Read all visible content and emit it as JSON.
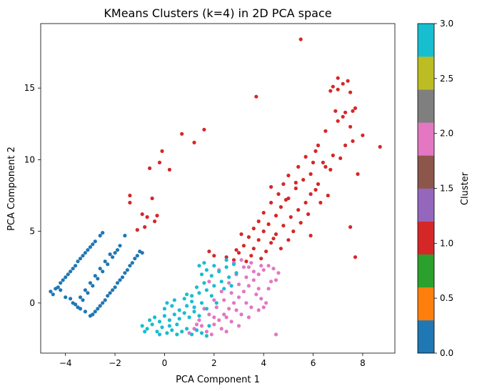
{
  "chart_data": {
    "type": "scatter",
    "title": "KMeans Clusters (k=4) in 2D PCA space",
    "xlabel": "PCA Component 1",
    "ylabel": "PCA Component 2",
    "xlim": [
      -5.0,
      9.3
    ],
    "ylim": [
      -3.5,
      19.5
    ],
    "xticks": [
      "−4",
      "−2",
      "0",
      "2",
      "4",
      "6",
      "8"
    ],
    "xtick_values": [
      -4,
      -2,
      0,
      2,
      4,
      6,
      8
    ],
    "yticks": [
      "0",
      "5",
      "10",
      "15"
    ],
    "ytick_values": [
      0,
      5,
      10,
      15
    ],
    "grid": false,
    "legend": "none",
    "colorbar": {
      "label": "Cluster",
      "range": [
        0.0,
        3.0
      ],
      "ticks": [
        "0.0",
        "0.5",
        "1.0",
        "1.5",
        "2.0",
        "2.5",
        "3.0"
      ],
      "tick_values": [
        0.0,
        0.5,
        1.0,
        1.5,
        2.0,
        2.5,
        3.0
      ],
      "colors": [
        "#1f77b4",
        "#ff7f0e",
        "#2ca02c",
        "#d62728",
        "#9467bd",
        "#8c564b",
        "#e377c2",
        "#7f7f7f",
        "#bcbd22",
        "#17becf"
      ]
    },
    "series": [
      {
        "cluster": 0,
        "color": "#1f77b4",
        "points": [
          [
            -4.6,
            0.8
          ],
          [
            -4.4,
            1.0
          ],
          [
            -4.2,
            1.4
          ],
          [
            -4.0,
            1.8
          ],
          [
            -3.8,
            2.2
          ],
          [
            -3.6,
            2.6
          ],
          [
            -3.4,
            3.1
          ],
          [
            -3.2,
            3.5
          ],
          [
            -3.0,
            3.9
          ],
          [
            -2.8,
            4.3
          ],
          [
            -2.6,
            4.7
          ],
          [
            -2.5,
            4.9
          ],
          [
            -4.3,
            1.1
          ],
          [
            -4.1,
            1.6
          ],
          [
            -3.9,
            2.0
          ],
          [
            -3.7,
            2.4
          ],
          [
            -3.5,
            2.9
          ],
          [
            -3.3,
            3.3
          ],
          [
            -3.1,
            3.7
          ],
          [
            -2.9,
            4.1
          ],
          [
            -4.5,
            0.6
          ],
          [
            -4.0,
            0.4
          ],
          [
            -3.7,
            0.0
          ],
          [
            -3.5,
            -0.3
          ],
          [
            -3.3,
            0.2
          ],
          [
            -3.1,
            0.7
          ],
          [
            -2.9,
            1.2
          ],
          [
            -2.7,
            1.7
          ],
          [
            -2.5,
            2.2
          ],
          [
            -2.3,
            2.7
          ],
          [
            -2.1,
            3.2
          ],
          [
            -1.9,
            3.7
          ],
          [
            -1.8,
            4.0
          ],
          [
            -3.6,
            -0.1
          ],
          [
            -3.4,
            0.4
          ],
          [
            -3.2,
            0.9
          ],
          [
            -3.0,
            1.4
          ],
          [
            -2.8,
            1.9
          ],
          [
            -2.6,
            2.4
          ],
          [
            -2.4,
            2.9
          ],
          [
            -2.2,
            3.4
          ],
          [
            -2.0,
            3.5
          ],
          [
            -3.2,
            -0.6
          ],
          [
            -3.0,
            -0.9
          ],
          [
            -2.8,
            -0.6
          ],
          [
            -2.6,
            -0.2
          ],
          [
            -2.4,
            0.2
          ],
          [
            -2.2,
            0.7
          ],
          [
            -2.0,
            1.1
          ],
          [
            -1.8,
            1.6
          ],
          [
            -1.6,
            2.1
          ],
          [
            -1.4,
            2.6
          ],
          [
            -1.2,
            3.1
          ],
          [
            -1.0,
            3.6
          ],
          [
            -1.6,
            4.7
          ],
          [
            -2.9,
            -0.8
          ],
          [
            -2.7,
            -0.4
          ],
          [
            -2.5,
            0.0
          ],
          [
            -2.3,
            0.5
          ],
          [
            -2.1,
            0.9
          ],
          [
            -1.9,
            1.4
          ],
          [
            -1.7,
            1.8
          ],
          [
            -1.5,
            2.3
          ],
          [
            -1.3,
            2.8
          ],
          [
            -1.1,
            3.3
          ],
          [
            -0.9,
            3.5
          ],
          [
            -3.4,
            -0.4
          ],
          [
            -4.2,
            0.9
          ],
          [
            -3.8,
            0.3
          ]
        ]
      },
      {
        "cluster": 1,
        "color": "#d62728",
        "points": [
          [
            5.5,
            18.4
          ],
          [
            3.7,
            14.4
          ],
          [
            7.0,
            15.7
          ],
          [
            7.2,
            15.3
          ],
          [
            6.8,
            15.1
          ],
          [
            7.4,
            15.5
          ],
          [
            6.7,
            14.8
          ],
          [
            7.0,
            14.9
          ],
          [
            7.5,
            14.7
          ],
          [
            6.9,
            13.4
          ],
          [
            7.2,
            13.0
          ],
          [
            7.7,
            13.6
          ],
          [
            7.6,
            13.4
          ],
          [
            7.3,
            13.3
          ],
          [
            7.0,
            12.7
          ],
          [
            7.5,
            12.3
          ],
          [
            8.0,
            11.7
          ],
          [
            8.7,
            10.9
          ],
          [
            7.6,
            11.3
          ],
          [
            6.5,
            12.0
          ],
          [
            6.2,
            11.0
          ],
          [
            6.8,
            10.3
          ],
          [
            7.3,
            11.0
          ],
          [
            6.1,
            10.6
          ],
          [
            5.7,
            10.2
          ],
          [
            6.4,
            9.8
          ],
          [
            7.1,
            10.1
          ],
          [
            5.4,
            9.5
          ],
          [
            5.9,
            9.0
          ],
          [
            6.5,
            9.5
          ],
          [
            6.7,
            9.3
          ],
          [
            5.0,
            8.9
          ],
          [
            5.6,
            8.6
          ],
          [
            6.2,
            8.3
          ],
          [
            4.8,
            8.3
          ],
          [
            5.3,
            8.0
          ],
          [
            5.9,
            7.6
          ],
          [
            6.6,
            7.5
          ],
          [
            4.6,
            7.6
          ],
          [
            5.0,
            7.3
          ],
          [
            5.7,
            7.0
          ],
          [
            6.3,
            7.0
          ],
          [
            4.3,
            7.0
          ],
          [
            4.7,
            6.7
          ],
          [
            5.4,
            6.5
          ],
          [
            4.0,
            6.3
          ],
          [
            4.5,
            6.1
          ],
          [
            5.1,
            6.0
          ],
          [
            5.8,
            6.2
          ],
          [
            3.8,
            5.7
          ],
          [
            4.2,
            5.5
          ],
          [
            4.8,
            5.4
          ],
          [
            5.5,
            5.6
          ],
          [
            3.6,
            5.2
          ],
          [
            4.0,
            5.0
          ],
          [
            4.5,
            4.8
          ],
          [
            5.2,
            5.0
          ],
          [
            5.9,
            4.7
          ],
          [
            3.4,
            4.6
          ],
          [
            3.8,
            4.4
          ],
          [
            4.3,
            4.2
          ],
          [
            5.0,
            4.4
          ],
          [
            3.2,
            4.0
          ],
          [
            3.6,
            3.8
          ],
          [
            4.1,
            3.6
          ],
          [
            4.7,
            3.8
          ],
          [
            3.0,
            3.5
          ],
          [
            3.5,
            3.3
          ],
          [
            2.8,
            3.0
          ],
          [
            3.3,
            2.9
          ],
          [
            2.5,
            3.2
          ],
          [
            2.9,
            3.7
          ],
          [
            3.9,
            3.1
          ],
          [
            7.7,
            3.2
          ],
          [
            7.5,
            5.3
          ],
          [
            4.3,
            8.1
          ],
          [
            4.9,
            7.2
          ],
          [
            5.3,
            8.4
          ],
          [
            6.0,
            9.8
          ],
          [
            7.8,
            9.0
          ],
          [
            6.1,
            7.9
          ],
          [
            4.4,
            4.5
          ],
          [
            3.1,
            4.8
          ],
          [
            2.0,
            3.3
          ],
          [
            1.8,
            3.6
          ],
          [
            0.7,
            11.8
          ],
          [
            1.6,
            12.1
          ],
          [
            1.2,
            11.2
          ],
          [
            -0.1,
            10.6
          ],
          [
            -0.6,
            9.4
          ],
          [
            -0.2,
            9.8
          ],
          [
            0.2,
            9.3
          ],
          [
            -0.5,
            7.3
          ],
          [
            -1.4,
            7.5
          ],
          [
            -1.4,
            7.0
          ],
          [
            -0.7,
            6.0
          ],
          [
            -0.9,
            6.2
          ],
          [
            -0.3,
            6.1
          ],
          [
            -0.4,
            5.7
          ],
          [
            -1.1,
            5.1
          ],
          [
            -0.8,
            5.3
          ]
        ]
      },
      {
        "cluster": 2,
        "color": "#e377c2",
        "points": [
          [
            1.0,
            -2.1
          ],
          [
            1.2,
            -1.8
          ],
          [
            1.5,
            -1.6
          ],
          [
            1.7,
            -2.0
          ],
          [
            2.0,
            -1.5
          ],
          [
            2.2,
            -1.2
          ],
          [
            2.4,
            -0.8
          ],
          [
            2.6,
            -0.4
          ],
          [
            2.8,
            0.0
          ],
          [
            3.0,
            0.4
          ],
          [
            3.2,
            0.8
          ],
          [
            3.4,
            1.2
          ],
          [
            3.6,
            1.6
          ],
          [
            3.8,
            2.0
          ],
          [
            4.0,
            2.3
          ],
          [
            4.2,
            2.6
          ],
          [
            4.4,
            2.4
          ],
          [
            1.4,
            -1.2
          ],
          [
            1.8,
            -0.8
          ],
          [
            2.1,
            -0.3
          ],
          [
            2.4,
            0.2
          ],
          [
            2.7,
            0.7
          ],
          [
            3.0,
            1.3
          ],
          [
            3.3,
            1.8
          ],
          [
            3.6,
            2.2
          ],
          [
            3.9,
            2.6
          ],
          [
            1.6,
            -0.4
          ],
          [
            2.0,
            0.2
          ],
          [
            2.3,
            0.8
          ],
          [
            2.6,
            1.4
          ],
          [
            2.9,
            2.0
          ],
          [
            3.2,
            2.5
          ],
          [
            3.5,
            2.8
          ],
          [
            1.9,
            -2.2
          ],
          [
            2.3,
            -1.8
          ],
          [
            2.7,
            -1.3
          ],
          [
            3.1,
            -0.8
          ],
          [
            3.5,
            -0.3
          ],
          [
            3.9,
            0.3
          ],
          [
            4.2,
            1.0
          ],
          [
            4.5,
            1.6
          ],
          [
            2.5,
            -2.0
          ],
          [
            3.0,
            -1.6
          ],
          [
            3.4,
            -1.0
          ],
          [
            3.8,
            -0.5
          ],
          [
            4.1,
            0.0
          ],
          [
            2.2,
            2.3
          ],
          [
            2.8,
            2.8
          ],
          [
            4.6,
            2.1
          ],
          [
            4.3,
            1.5
          ],
          [
            3.7,
            0.6
          ],
          [
            3.3,
            0.0
          ],
          [
            2.9,
            -0.5
          ],
          [
            2.5,
            -1.0
          ],
          [
            2.0,
            -1.0
          ],
          [
            1.3,
            -1.5
          ],
          [
            4.0,
            -0.3
          ],
          [
            4.5,
            -2.2
          ],
          [
            1.8,
            1.5
          ],
          [
            3.1,
            3.0
          ],
          [
            3.4,
            2.5
          ],
          [
            3.8,
            1.0
          ]
        ]
      },
      {
        "cluster": 3,
        "color": "#17becf",
        "points": [
          [
            -0.9,
            -1.6
          ],
          [
            -0.7,
            -1.8
          ],
          [
            -0.5,
            -1.5
          ],
          [
            -0.3,
            -2.0
          ],
          [
            -0.1,
            -1.7
          ],
          [
            0.1,
            -2.1
          ],
          [
            0.3,
            -1.9
          ],
          [
            0.5,
            -2.2
          ],
          [
            0.7,
            -2.0
          ],
          [
            0.9,
            -1.8
          ],
          [
            1.1,
            -2.2
          ],
          [
            1.3,
            -1.9
          ],
          [
            1.5,
            -2.1
          ],
          [
            1.7,
            -2.3
          ],
          [
            -0.6,
            -1.2
          ],
          [
            -0.4,
            -1.0
          ],
          [
            -0.2,
            -1.3
          ],
          [
            0.0,
            -0.9
          ],
          [
            0.2,
            -1.2
          ],
          [
            0.4,
            -0.8
          ],
          [
            0.6,
            -1.1
          ],
          [
            0.8,
            -0.7
          ],
          [
            1.0,
            -1.0
          ],
          [
            1.2,
            -0.6
          ],
          [
            1.4,
            -0.9
          ],
          [
            0.0,
            -0.4
          ],
          [
            0.3,
            -0.2
          ],
          [
            0.6,
            -0.5
          ],
          [
            0.9,
            -0.2
          ],
          [
            1.2,
            -0.3
          ],
          [
            1.5,
            0.0
          ],
          [
            1.7,
            -0.4
          ],
          [
            0.4,
            0.2
          ],
          [
            0.8,
            0.3
          ],
          [
            1.1,
            0.5
          ],
          [
            1.4,
            0.7
          ],
          [
            1.7,
            0.9
          ],
          [
            2.0,
            1.2
          ],
          [
            2.3,
            1.5
          ],
          [
            2.6,
            1.8
          ],
          [
            2.9,
            2.1
          ],
          [
            1.6,
            1.4
          ],
          [
            1.9,
            1.9
          ],
          [
            2.2,
            2.2
          ],
          [
            2.5,
            2.5
          ],
          [
            2.8,
            2.7
          ],
          [
            1.5,
            2.0
          ],
          [
            1.7,
            2.3
          ],
          [
            2.0,
            2.6
          ],
          [
            2.4,
            1.0
          ],
          [
            2.7,
            1.2
          ],
          [
            1.3,
            1.1
          ],
          [
            0.5,
            -1.5
          ],
          [
            -0.2,
            -2.2
          ],
          [
            1.9,
            0.5
          ],
          [
            2.1,
            0.0
          ],
          [
            2.5,
            3.0
          ],
          [
            1.4,
            2.6
          ],
          [
            1.6,
            2.8
          ],
          [
            0.2,
            -1.6
          ],
          [
            -0.8,
            -2.0
          ],
          [
            1.8,
            -1.6
          ],
          [
            0.9,
            0.6
          ],
          [
            1.1,
            0.1
          ],
          [
            0.1,
            0.0
          ]
        ]
      }
    ]
  }
}
